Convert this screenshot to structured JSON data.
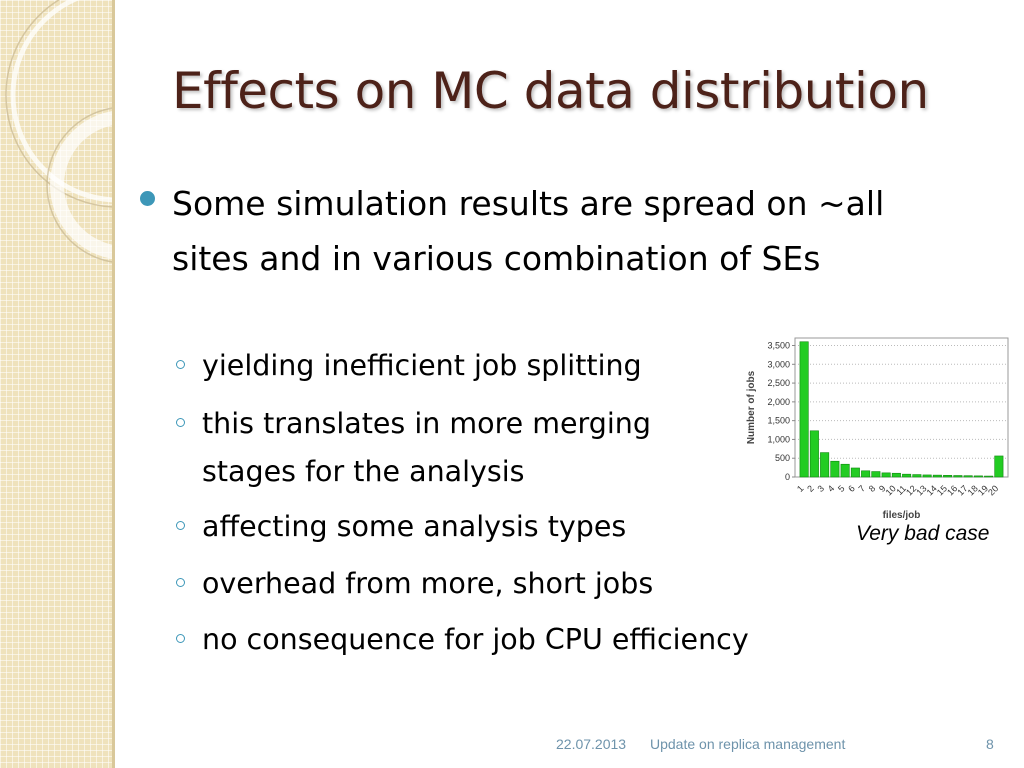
{
  "slide": {
    "title": "Effects on MC data distribution",
    "bullet": "Some simulation results are spread on ~all sites and in various combination of SEs",
    "sub_bullets": [
      "yielding inefficient job splitting",
      "this translates in more merging stages for the analysis",
      "affecting some analysis types",
      "overhead from more, short jobs",
      "no consequence for job CPU efficiency"
    ],
    "caption": "Very bad case"
  },
  "footer": {
    "date": "22.07.2013",
    "title": "Update on replica management",
    "page": "8"
  },
  "colors": {
    "title": "#4d2219",
    "accent": "#3d97b8",
    "bar": "#22cc22",
    "footer": "#6e93ab"
  },
  "chart_data": {
    "type": "bar",
    "xlabel": "files/job",
    "ylabel": "Number of jobs",
    "categories": [
      "1",
      "2",
      "3",
      "4",
      "5",
      "6",
      "7",
      "8",
      "9",
      "10",
      "11",
      "12",
      "13",
      "14",
      "15",
      "16",
      "17",
      "18",
      "19",
      "20"
    ],
    "values": [
      3600,
      1230,
      650,
      420,
      340,
      240,
      165,
      145,
      110,
      100,
      75,
      65,
      55,
      50,
      45,
      40,
      35,
      30,
      25,
      560
    ],
    "ylim": [
      0,
      3700
    ],
    "yticks": [
      0,
      500,
      1000,
      1500,
      2000,
      2500,
      3000,
      3500
    ],
    "ytick_labels": [
      "0",
      "500",
      "1,000",
      "1,500",
      "2,000",
      "2,500",
      "3,000",
      "3,500"
    ],
    "grid": true
  }
}
